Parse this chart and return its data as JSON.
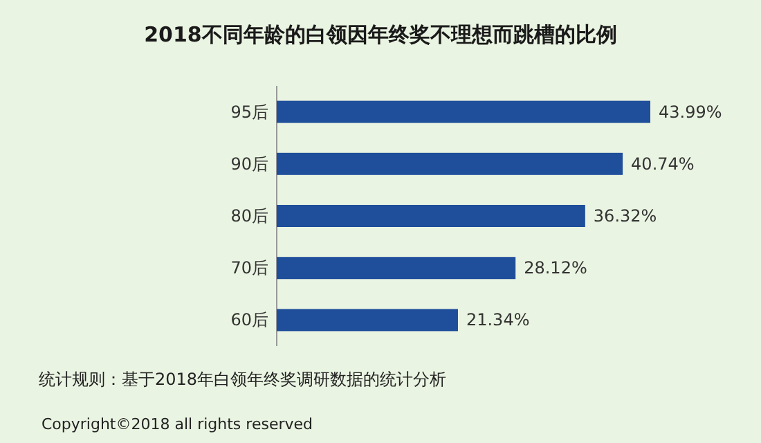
{
  "chart_data": {
    "type": "bar",
    "orientation": "horizontal",
    "title": "2018不同年龄的白领因年终奖不理想而跳槽的比例",
    "categories": [
      "95后",
      "90后",
      "80后",
      "70后",
      "60后"
    ],
    "values": [
      43.99,
      40.74,
      36.32,
      28.12,
      21.34
    ],
    "value_labels": [
      "43.99%",
      "40.74%",
      "36.32%",
      "28.12%",
      "21.34%"
    ],
    "color": "#1f4e9a",
    "annotations": [
      "统计规则：基于2018年白领年终奖调研数据的统计分析",
      "Copyright©2018 all rights reserved"
    ]
  }
}
